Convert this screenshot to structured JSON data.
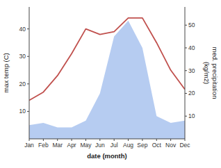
{
  "chart_data": {
    "type": "line",
    "categories": [
      "Jan",
      "Feb",
      "Mar",
      "Apr",
      "May",
      "Jun",
      "Jul",
      "Aug",
      "Sep",
      "Oct",
      "Nov",
      "Dec"
    ],
    "series": [
      {
        "type": "area",
        "axis": "y2",
        "color": "#aec6f0",
        "values": [
          6,
          7,
          5,
          5,
          8,
          20,
          45,
          52,
          40,
          10,
          7,
          8
        ]
      },
      {
        "type": "line",
        "color": "#c0504d",
        "values": [
          14,
          17,
          23,
          31,
          40,
          38,
          39,
          44,
          44,
          35,
          25,
          18
        ]
      }
    ],
    "x_label": "date (month)",
    "y_label": "max temp (C)",
    "y2_label": "med. precipitation\n(kg/m2)",
    "ylim": [
      0,
      48
    ],
    "yticks": [
      10,
      20,
      30,
      40
    ],
    "y2lim": [
      0,
      58
    ],
    "y2ticks": [
      10,
      20,
      30,
      40,
      50
    ],
    "grid": false
  }
}
